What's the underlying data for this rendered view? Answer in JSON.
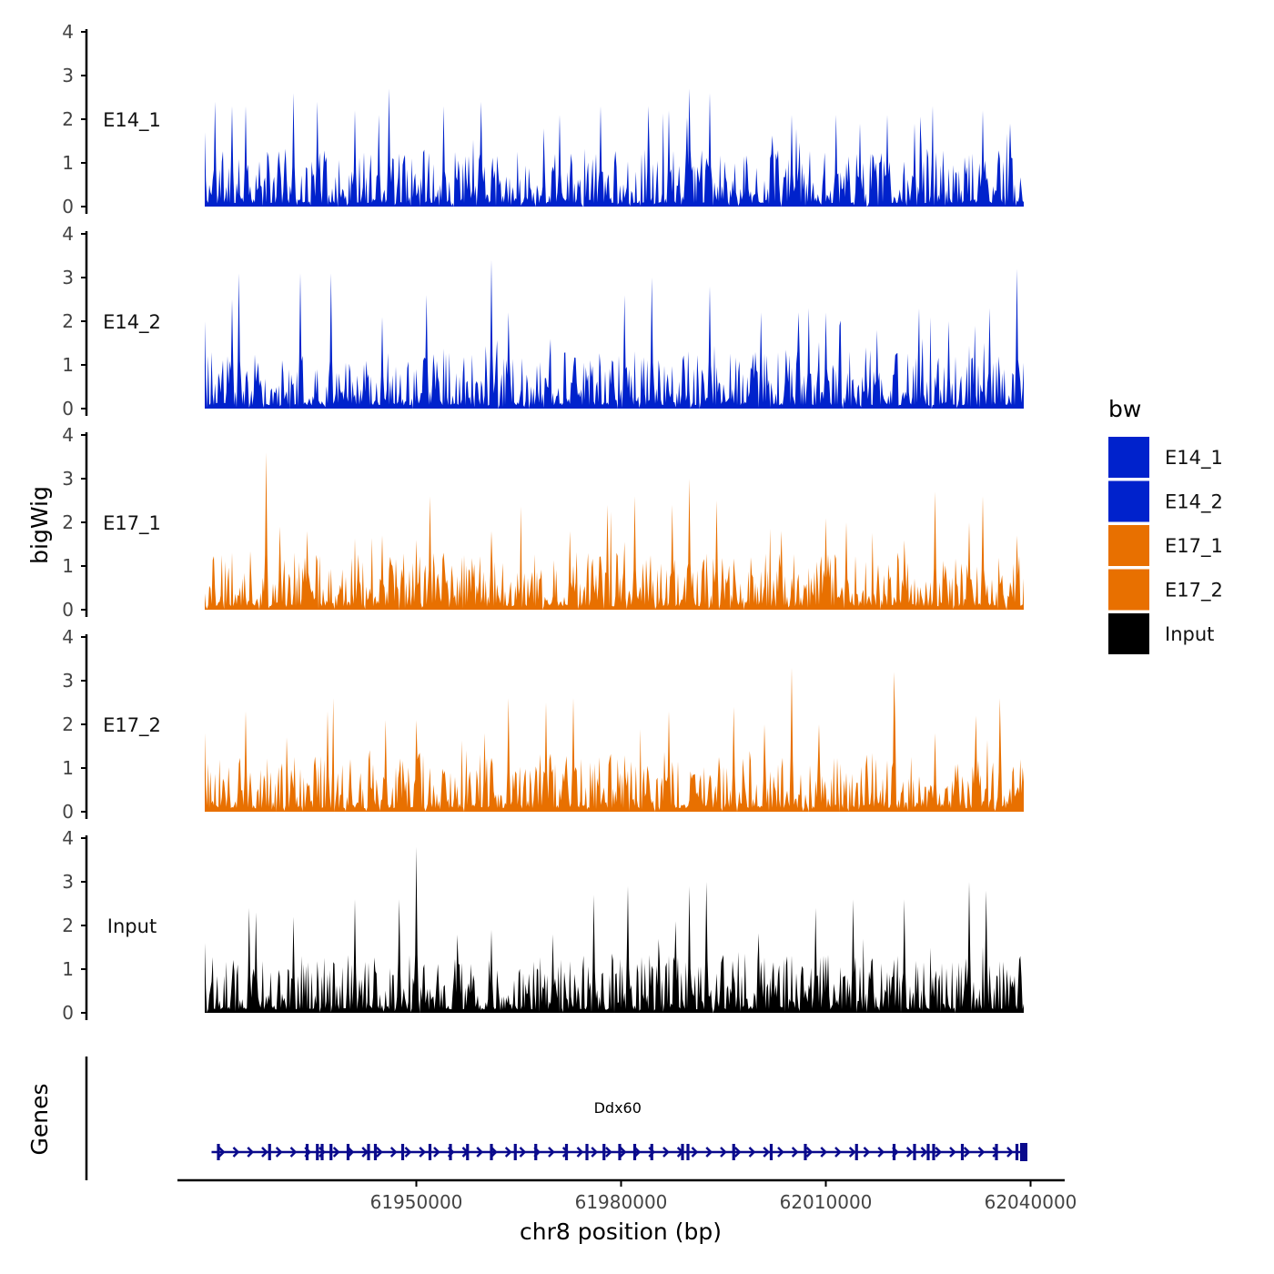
{
  "chart_data": {
    "type": "area",
    "title": "",
    "xlabel": "chr8 position (bp)",
    "ylabel": "bigWig",
    "genes_label": "Genes",
    "xlim": [
      61915000,
      62045000
    ],
    "x_ticks": [
      61950000,
      61980000,
      62010000,
      62040000
    ],
    "x_tick_labels": [
      "61950000",
      "61980000",
      "62010000",
      "62040000"
    ],
    "data_range": [
      61919000,
      62039000
    ],
    "ylim": [
      0,
      4
    ],
    "y_ticks": [
      0,
      1,
      2,
      3,
      4
    ],
    "y_tick_labels": [
      "0",
      "1",
      "2",
      "3",
      "4"
    ],
    "series": [
      {
        "name": "E14_1",
        "color": "#0022CC",
        "seed": 11,
        "peaks": [
          [
            61919000,
            1.7
          ],
          [
            61920500,
            2.4
          ],
          [
            61923000,
            2.3
          ],
          [
            61925000,
            2.3
          ],
          [
            61932000,
            2.6
          ],
          [
            61935500,
            2.4
          ],
          [
            61941000,
            2.2
          ],
          [
            61944500,
            2.1
          ],
          [
            61946000,
            2.7
          ],
          [
            61954000,
            2.3
          ],
          [
            61959500,
            2.4
          ],
          [
            61971000,
            2.1
          ],
          [
            61977000,
            2.3
          ],
          [
            61984000,
            2.3
          ],
          [
            61987000,
            2.2
          ],
          [
            61990000,
            2.7
          ],
          [
            61993000,
            2.6
          ],
          [
            62005000,
            2.1
          ],
          [
            62011500,
            2.1
          ],
          [
            62015000,
            1.9
          ],
          [
            62019000,
            2.1
          ],
          [
            62023000,
            1.9
          ],
          [
            62033000,
            2.2
          ],
          [
            62037000,
            1.9
          ]
        ],
        "zero_points": [
          61938500,
          61950500,
          61955500,
          61967500,
          61974500,
          62003500,
          62016000
        ]
      },
      {
        "name": "E14_2",
        "color": "#0022CC",
        "seed": 23,
        "peaks": [
          [
            61919000,
            2.0
          ],
          [
            61923000,
            2.5
          ],
          [
            61924000,
            3.1
          ],
          [
            61933000,
            3.1
          ],
          [
            61937500,
            3.1
          ],
          [
            61945000,
            2.1
          ],
          [
            61951500,
            2.6
          ],
          [
            61961000,
            3.4
          ],
          [
            61963500,
            2.2
          ],
          [
            61980500,
            2.6
          ],
          [
            61984500,
            3.0
          ],
          [
            61993000,
            2.8
          ],
          [
            62000500,
            2.2
          ],
          [
            62006000,
            2.2
          ],
          [
            62007500,
            2.3
          ],
          [
            62010000,
            2.2
          ],
          [
            62012000,
            1.9
          ],
          [
            62017500,
            1.8
          ],
          [
            62028000,
            2.0
          ],
          [
            62034000,
            2.3
          ],
          [
            62038000,
            3.2
          ]
        ],
        "zero_points": [
          61931500,
          61949500,
          61962000,
          61966500,
          61979500,
          61991500,
          62012500,
          62025500
        ]
      },
      {
        "name": "E17_1",
        "color": "#E87000",
        "seed": 37,
        "peaks": [
          [
            61928000,
            3.6
          ],
          [
            61930000,
            1.9
          ],
          [
            61934000,
            1.8
          ],
          [
            61945000,
            1.7
          ],
          [
            61950000,
            1.6
          ],
          [
            61952000,
            2.6
          ],
          [
            61961000,
            1.8
          ],
          [
            61972500,
            1.8
          ],
          [
            61978000,
            2.4
          ],
          [
            61982000,
            2.6
          ],
          [
            61987500,
            2.4
          ],
          [
            61990000,
            3.0
          ],
          [
            61994000,
            2.5
          ],
          [
            62003500,
            1.8
          ],
          [
            62010000,
            2.1
          ],
          [
            62013000,
            2.0
          ],
          [
            62026000,
            2.7
          ],
          [
            62031000,
            2.0
          ],
          [
            62033000,
            2.6
          ],
          [
            62038000,
            1.7
          ]
        ],
        "zero_points": [
          61927000,
          61947500,
          61968500,
          61998000,
          62018000,
          62036500
        ]
      },
      {
        "name": "E17_2",
        "color": "#E87000",
        "seed": 41,
        "peaks": [
          [
            61919000,
            1.8
          ],
          [
            61925000,
            2.3
          ],
          [
            61937000,
            2.3
          ],
          [
            61937800,
            2.6
          ],
          [
            61945500,
            2.1
          ],
          [
            61950000,
            2.1
          ],
          [
            61960000,
            1.8
          ],
          [
            61963500,
            2.6
          ],
          [
            61969000,
            2.5
          ],
          [
            61973000,
            2.6
          ],
          [
            61987000,
            2.3
          ],
          [
            61996500,
            2.4
          ],
          [
            62001000,
            2.0
          ],
          [
            62005000,
            3.3
          ],
          [
            62009000,
            2.0
          ],
          [
            62020000,
            3.2
          ],
          [
            62026000,
            1.8
          ],
          [
            62032000,
            2.2
          ],
          [
            62035500,
            2.6
          ],
          [
            62038500,
            1.2
          ]
        ],
        "zero_points": [
          61929500,
          61938000,
          61957000,
          61985000,
          61997000,
          62007500,
          62012000,
          62039200
        ]
      },
      {
        "name": "Input",
        "color": "#000000",
        "seed": 53,
        "peaks": [
          [
            61919000,
            1.6
          ],
          [
            61925500,
            2.4
          ],
          [
            61926500,
            2.3
          ],
          [
            61932000,
            2.2
          ],
          [
            61941000,
            2.6
          ],
          [
            61947500,
            2.6
          ],
          [
            61950000,
            3.8
          ],
          [
            61961000,
            1.9
          ],
          [
            61970000,
            1.8
          ],
          [
            61976000,
            2.7
          ],
          [
            61981000,
            2.9
          ],
          [
            61988000,
            2.1
          ],
          [
            61990000,
            2.9
          ],
          [
            61992500,
            3.0
          ],
          [
            62008500,
            2.4
          ],
          [
            62014000,
            2.6
          ],
          [
            62021500,
            2.6
          ],
          [
            62031000,
            3.0
          ],
          [
            62033500,
            2.8
          ],
          [
            62038500,
            1.3
          ]
        ],
        "zero_points": [
          61950500,
          61971000,
          61979000,
          61993500,
          62021000,
          62029000
        ]
      }
    ],
    "legend": {
      "title": "bw",
      "position": "right",
      "entries": [
        {
          "label": "E14_1",
          "color": "#0022CC"
        },
        {
          "label": "E14_2",
          "color": "#0022CC"
        },
        {
          "label": "E17_1",
          "color": "#E87000"
        },
        {
          "label": "E17_2",
          "color": "#E87000"
        },
        {
          "label": "Input",
          "color": "#000000"
        }
      ]
    },
    "gene_track": {
      "gene_name": "Ddx60",
      "strand": "+",
      "start": 61920000,
      "end": 62039000,
      "color": "#0A0A8C",
      "exons": [
        61921000,
        61928500,
        61934000,
        61935500,
        61936200,
        61937500,
        61940000,
        61943000,
        61944000,
        61948000,
        61952000,
        61955000,
        61957500,
        61961000,
        61964500,
        61967500,
        61972000,
        61975000,
        61977500,
        61979800,
        61982000,
        61984500,
        61989000,
        61989800,
        61996500,
        62002000,
        62007000,
        62014500,
        62020000,
        62023000,
        62025000,
        62025800,
        62030000,
        62035000,
        62038000,
        62039000
      ]
    }
  }
}
